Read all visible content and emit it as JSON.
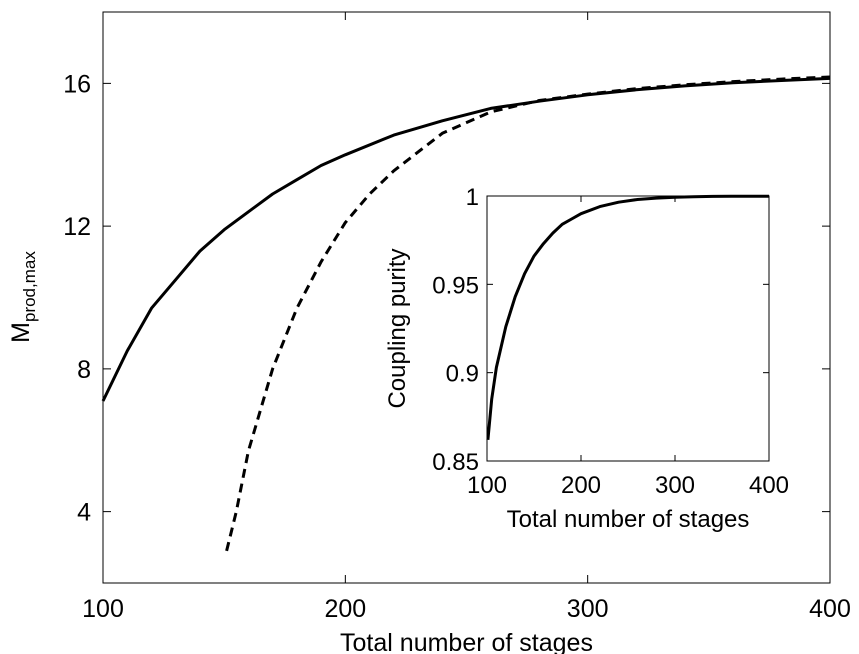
{
  "chart_data": [
    {
      "type": "line",
      "title": "",
      "xlabel": "Total number of stages",
      "ylabel": "M",
      "ylabel_subscript": "prod,max",
      "xlim": [
        100,
        400
      ],
      "ylim": [
        2,
        18
      ],
      "xticks": [
        100,
        200,
        300,
        400
      ],
      "yticks": [
        4,
        8,
        12,
        16
      ],
      "grid": false,
      "series": [
        {
          "style": "solid",
          "color": "#000000",
          "x": [
            100,
            105,
            110,
            120,
            130,
            140,
            150,
            160,
            170,
            180,
            190,
            200,
            220,
            240,
            260,
            280,
            300,
            320,
            340,
            360,
            380,
            400
          ],
          "y": [
            7.1,
            7.8,
            8.5,
            9.7,
            10.5,
            11.3,
            11.9,
            12.4,
            12.9,
            13.3,
            13.7,
            14.0,
            14.55,
            14.95,
            15.3,
            15.5,
            15.68,
            15.82,
            15.93,
            16.02,
            16.08,
            16.14
          ]
        },
        {
          "style": "dashed",
          "color": "#000000",
          "x": [
            151,
            155,
            160,
            170,
            180,
            190,
            200,
            210,
            220,
            240,
            260,
            280,
            300,
            320,
            340,
            360,
            380,
            400
          ],
          "y": [
            2.9,
            4.0,
            5.7,
            8.0,
            9.7,
            11.0,
            12.1,
            12.9,
            13.55,
            14.6,
            15.2,
            15.52,
            15.7,
            15.85,
            15.96,
            16.05,
            16.12,
            16.18
          ]
        }
      ]
    },
    {
      "type": "line",
      "title": "",
      "xlabel": "Total number of stages",
      "ylabel": "Coupling purity",
      "xlim": [
        100,
        400
      ],
      "ylim": [
        0.85,
        1
      ],
      "xticks": [
        100,
        200,
        300,
        400
      ],
      "yticks": [
        0.85,
        0.9,
        0.95,
        1
      ],
      "ytick_labels": [
        "0.85",
        "0.9",
        "0.95",
        "1"
      ],
      "grid": false,
      "series": [
        {
          "style": "solid",
          "color": "#000000",
          "x": [
            101,
            105,
            110,
            120,
            130,
            140,
            150,
            160,
            170,
            180,
            190,
            200,
            220,
            240,
            260,
            280,
            300,
            320,
            340,
            360,
            380,
            400
          ],
          "y": [
            0.862,
            0.885,
            0.903,
            0.926,
            0.943,
            0.956,
            0.966,
            0.973,
            0.979,
            0.984,
            0.987,
            0.99,
            0.994,
            0.9965,
            0.998,
            0.9988,
            0.9993,
            0.9996,
            0.9998,
            0.9999,
            0.9999,
            0.9999
          ]
        }
      ]
    }
  ]
}
